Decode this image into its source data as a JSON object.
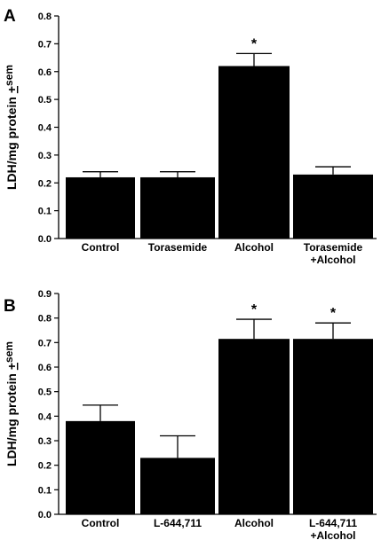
{
  "chart_data": [
    {
      "type": "bar",
      "panel": "A",
      "ylabel_main": "LDH/mg protein ",
      "ylabel_pm": "+",
      "ylabel_sem": "sem",
      "ylim": [
        0,
        0.8
      ],
      "yticks": [
        "0.0",
        "0.1",
        "0.2",
        "0.3",
        "0.4",
        "0.5",
        "0.6",
        "0.7",
        "0.8"
      ],
      "categories": [
        [
          "Control"
        ],
        [
          "Torasemide"
        ],
        [
          "Alcohol"
        ],
        [
          "Torasemide",
          "+Alcohol"
        ]
      ],
      "values": [
        0.22,
        0.22,
        0.62,
        0.23
      ],
      "errors": [
        0.02,
        0.02,
        0.045,
        0.028
      ],
      "significance": [
        "",
        "",
        "*",
        ""
      ],
      "colors": {
        "bar": "#000000"
      }
    },
    {
      "type": "bar",
      "panel": "B",
      "ylabel_main": "LDH/mg protein ",
      "ylabel_pm": "+",
      "ylabel_sem": "sem",
      "ylim": [
        0,
        0.9
      ],
      "yticks": [
        "0.0",
        "0.1",
        "0.2",
        "0.3",
        "0.4",
        "0.5",
        "0.6",
        "0.7",
        "0.8",
        "0.9"
      ],
      "categories": [
        [
          "Control"
        ],
        [
          "L-644,711"
        ],
        [
          "Alcohol"
        ],
        [
          "L-644,711",
          "+Alcohol"
        ]
      ],
      "values": [
        0.38,
        0.23,
        0.715,
        0.715
      ],
      "errors": [
        0.065,
        0.09,
        0.08,
        0.065
      ],
      "significance": [
        "",
        "",
        "*",
        "*"
      ],
      "colors": {
        "bar": "#000000"
      }
    }
  ]
}
